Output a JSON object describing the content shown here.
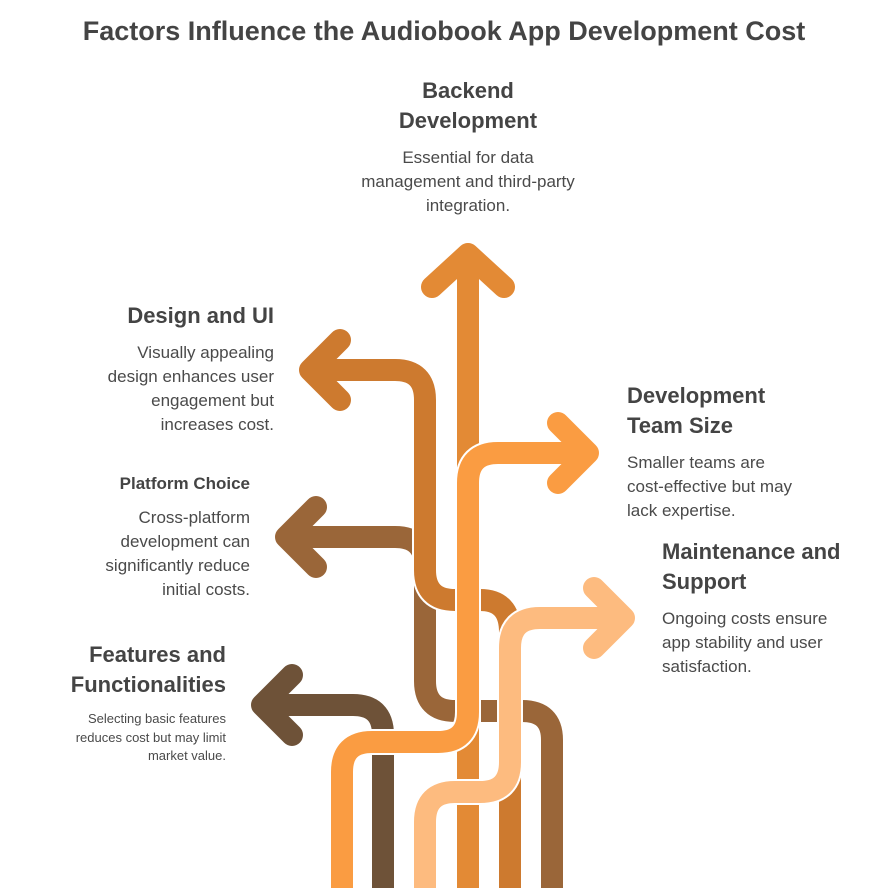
{
  "title": "Factors Influence the Audiobook App Development Cost",
  "factors": [
    {
      "id": "backend",
      "heading": "Backend Development",
      "description": "Essential for data management and third-party integration.",
      "color": "#E38A35",
      "direction": "up"
    },
    {
      "id": "design",
      "heading": "Design and UI",
      "description": "Visually appealing design enhances user engagement but increases cost.",
      "color": "#CD7A2F",
      "direction": "left"
    },
    {
      "id": "platform",
      "heading": "Platform Choice",
      "description": "Cross-platform development can significantly reduce initial costs.",
      "color": "#9A6639",
      "direction": "left"
    },
    {
      "id": "features",
      "heading": "Features and Functionalities",
      "description": "Selecting basic features reduces cost but may limit market value.",
      "color": "#6E5238",
      "direction": "left"
    },
    {
      "id": "team",
      "heading": "Development Team Size",
      "description": "Smaller teams are cost-effective but may lack expertise.",
      "color": "#FA9C42",
      "direction": "right"
    },
    {
      "id": "maintenance",
      "heading": "Maintenance and Support",
      "description": "Ongoing costs ensure app stability and user satisfaction.",
      "color": "#FDBB7F",
      "direction": "right"
    }
  ]
}
